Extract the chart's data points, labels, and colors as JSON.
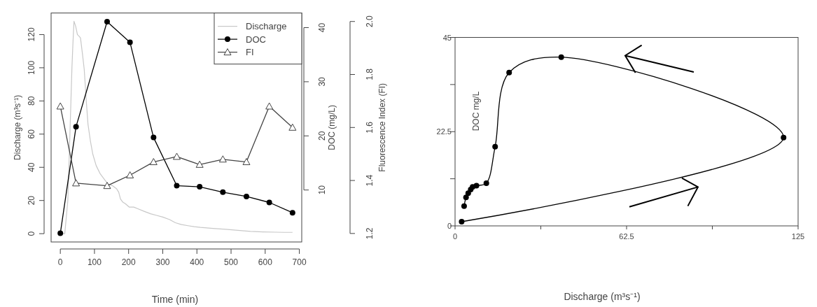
{
  "chart_data": [
    {
      "type": "line",
      "xlabel": "Time (min)",
      "ylabel": "Discharge (m³s⁻¹)",
      "y2label": "DOC (mg/L)",
      "y3label": "Fluorescence Index (FI)",
      "legend": "top right",
      "xlim": [
        -27,
        707
      ],
      "xticks": [
        0,
        100,
        200,
        300,
        400,
        500,
        600,
        700
      ],
      "ylim": [
        -5,
        133
      ],
      "yticks": [
        0,
        20,
        40,
        60,
        80,
        100,
        120
      ],
      "y2lim": [
        0.4,
        42.7
      ],
      "y2ticks": [
        10,
        20,
        30,
        40
      ],
      "y3lim": [
        1.168,
        2.032
      ],
      "y3ticks": [
        {
          "value": 1.2,
          "label": "1.2"
        },
        {
          "value": 1.4,
          "label": "1.4"
        },
        {
          "value": 1.6,
          "label": "1.6"
        },
        {
          "value": 1.8,
          "label": "1.8"
        },
        {
          "value": 2,
          "label": "2.0"
        }
      ],
      "series": [
        {
          "name": "Discharge",
          "color": "#c8c8c8",
          "marker": "none",
          "x": [
            0,
            13,
            22,
            29,
            34,
            37,
            40,
            45,
            50,
            55,
            59,
            65,
            70,
            76,
            81,
            88,
            95,
            105,
            117,
            128,
            139,
            152,
            165,
            171,
            176,
            183,
            191,
            202,
            215,
            227,
            245,
            264,
            282,
            300,
            320,
            337,
            355,
            374,
            392,
            410,
            447,
            484,
            520,
            557,
            593,
            630,
            655,
            680
          ],
          "values": [
            0,
            0,
            20,
            66,
            100,
            115,
            128,
            125,
            120,
            119,
            118,
            108,
            99,
            80,
            66,
            56,
            48,
            41,
            36,
            33,
            30,
            29,
            27,
            25,
            21,
            19,
            18,
            16,
            16,
            15,
            13.5,
            12,
            11,
            10,
            8.5,
            6.6,
            5.5,
            4.8,
            4.2,
            3.8,
            3.2,
            2.6,
            2,
            1.4,
            1.1,
            0.9,
            0.8,
            0.8
          ]
        },
        {
          "name": "DOC",
          "color": "#000000",
          "marker": "circle",
          "axis": "y2",
          "x": [
            0,
            46,
            137,
            204,
            273,
            341,
            408,
            476,
            545,
            612,
            680
          ],
          "values": [
            2.0,
            21.7,
            41.1,
            37.3,
            19.7,
            10.8,
            10.6,
            9.6,
            8.8,
            7.7,
            5.8
          ]
        },
        {
          "name": "FI",
          "color": "#444444",
          "marker": "triangle",
          "axis": "y3",
          "x": [
            0,
            46,
            137,
            204,
            273,
            341,
            408,
            476,
            545,
            612,
            680
          ],
          "values": [
            1.68,
            1.39,
            1.38,
            1.42,
            1.47,
            1.49,
            1.46,
            1.48,
            1.47,
            1.68,
            1.6
          ]
        }
      ]
    },
    {
      "type": "line",
      "xlabel": "Discharge (m³s⁻¹)",
      "ylabel": "DOC mg/L",
      "xlim": [
        0,
        125
      ],
      "xticks": [
        0,
        {
          "value": 31.25,
          "label": null
        },
        62.5,
        {
          "value": 93.75,
          "label": null
        },
        125
      ],
      "ylim": [
        0,
        45
      ],
      "yticks": [
        0,
        {
          "value": 11.25,
          "label": null
        },
        22.5,
        {
          "value": 33.75,
          "label": null
        },
        45
      ],
      "series": [
        {
          "color": "#000000",
          "marker": "circle",
          "x": [
            2.4,
            119.7,
            38.7,
            19.7,
            14.6,
            11.4,
            7.8,
            6.4,
            5.7,
            4.8,
            4.0,
            3.3
          ],
          "values": [
            1.0,
            21.1,
            40.3,
            36.6,
            18.9,
            10.2,
            9.6,
            9.3,
            8.7,
            7.8,
            6.8,
            4.7
          ]
        }
      ]
    }
  ]
}
